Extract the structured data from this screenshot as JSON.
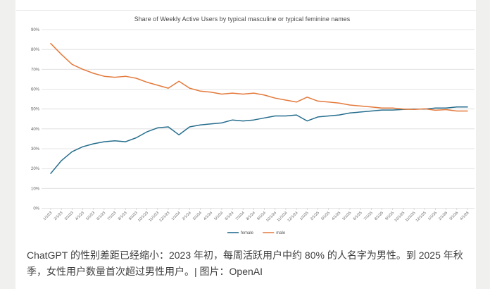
{
  "page": {
    "caption": "ChatGPT 的性别差距已经缩小：2023 年初，每周活跃用户中约 80% 的人名字为男性。到 2025 年秋季，女性用户数量首次超过男性用户。| 图片：OpenAI"
  },
  "colors": {
    "female_line": "#256d8d",
    "male_line": "#e4793b",
    "gridline": "#dcdcdc",
    "axis_text": "#636363",
    "title_text": "#474747"
  },
  "chart_data": {
    "type": "line",
    "title": "Share of Weekly Active Users by typical masculine or typical feminine names",
    "xlabel": "",
    "ylabel": "",
    "ylim": [
      0,
      90
    ],
    "ytick_step": 10,
    "ytick_suffix": "%",
    "grid": true,
    "legend_position": "bottom-center",
    "x": [
      "1/1/23",
      "2/1/23",
      "3/1/23",
      "4/1/23",
      "5/1/23",
      "6/1/23",
      "7/1/23",
      "8/1/23",
      "9/1/23",
      "10/1/23",
      "11/1/23",
      "12/1/23",
      "1/1/24",
      "2/1/24",
      "3/1/24",
      "4/1/24",
      "5/1/24",
      "6/1/24",
      "7/1/24",
      "8/1/24",
      "9/1/24",
      "10/1/24",
      "11/1/24",
      "12/1/24",
      "1/1/25",
      "2/1/25",
      "3/1/25",
      "4/1/25",
      "5/1/25",
      "6/1/25",
      "7/1/25",
      "8/1/25",
      "9/1/25",
      "10/1/25",
      "11/1/25",
      "12/1/25",
      "1/1/26",
      "2/1/26",
      "3/1/26",
      "4/1/26"
    ],
    "series": [
      {
        "name": "female",
        "color": "#256d8d",
        "values": [
          17.5,
          24,
          28.5,
          31,
          32.5,
          33.5,
          34,
          33.5,
          35.5,
          38.5,
          40.5,
          41,
          37,
          41,
          42,
          42.5,
          43,
          44.5,
          44,
          44.5,
          45.5,
          46.5,
          46.5,
          47,
          44,
          46,
          46.5,
          47,
          48,
          48.5,
          49,
          49.5,
          49.5,
          49.8,
          50,
          50,
          50.5,
          50.5,
          51,
          51
        ]
      },
      {
        "name": "male",
        "color": "#e4793b",
        "values": [
          83,
          77.5,
          72.5,
          70,
          68,
          66.5,
          66,
          66.5,
          65.5,
          63.5,
          62,
          60.5,
          64,
          60.5,
          59,
          58.5,
          57.5,
          58,
          57.5,
          58,
          57,
          55.5,
          54.5,
          53.5,
          56,
          54,
          53.5,
          53,
          52,
          51.5,
          51,
          50.5,
          50.5,
          50,
          49.8,
          50.1,
          49.4,
          49.7,
          49,
          49
        ]
      }
    ]
  }
}
